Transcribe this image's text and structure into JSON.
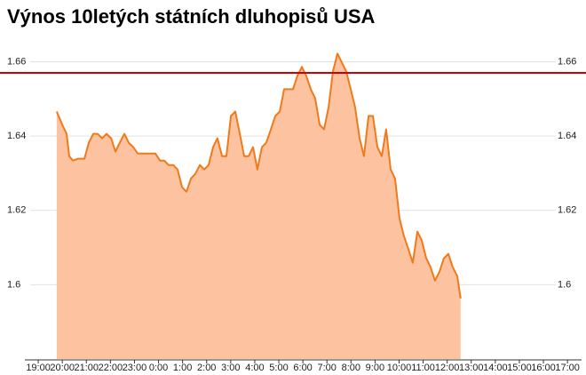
{
  "chart_data": {
    "type": "area",
    "title": "Výnos 10letých státních dluhopisů USA",
    "x": [
      0.77,
      1.0,
      1.18,
      1.29,
      1.44,
      1.66,
      1.92,
      2.1,
      2.29,
      2.47,
      2.66,
      2.84,
      3.03,
      3.21,
      3.39,
      3.58,
      3.76,
      3.95,
      4.13,
      4.32,
      4.5,
      4.69,
      4.87,
      5.06,
      5.24,
      5.42,
      5.61,
      5.79,
      5.98,
      6.16,
      6.35,
      6.53,
      6.72,
      6.9,
      7.08,
      7.27,
      7.45,
      7.64,
      7.82,
      8.01,
      8.19,
      8.38,
      8.56,
      8.75,
      8.93,
      9.11,
      9.3,
      9.48,
      9.67,
      9.85,
      10.04,
      10.22,
      10.41,
      10.59,
      10.77,
      10.96,
      11.14,
      11.33,
      11.51,
      11.7,
      11.88,
      12.07,
      12.25,
      12.44,
      12.62,
      12.8,
      12.99,
      13.17,
      13.36,
      13.54,
      13.73,
      13.91,
      14.1,
      14.28,
      14.46,
      14.65,
      14.83,
      15.02,
      15.2,
      15.39,
      15.57,
      15.76,
      15.94,
      16.13,
      16.31,
      16.49,
      16.68,
      16.86,
      17.05,
      17.23,
      17.42,
      17.56
    ],
    "series": [
      {
        "color": "#f07a1a",
        "fill": "#fdc3a0",
        "values": [
          1.6466,
          1.643,
          1.6406,
          1.6346,
          1.6334,
          1.6339,
          1.6339,
          1.6382,
          1.6406,
          1.6406,
          1.6394,
          1.6406,
          1.6394,
          1.6358,
          1.6382,
          1.6406,
          1.6382,
          1.637,
          1.6353,
          1.6353,
          1.6353,
          1.6353,
          1.6353,
          1.6334,
          1.6334,
          1.6322,
          1.6322,
          1.631,
          1.6262,
          1.625,
          1.6286,
          1.6298,
          1.6322,
          1.631,
          1.6322,
          1.637,
          1.6394,
          1.6346,
          1.6346,
          1.6454,
          1.6466,
          1.6406,
          1.6346,
          1.6346,
          1.637,
          1.631,
          1.637,
          1.6382,
          1.6418,
          1.6454,
          1.6466,
          1.6526,
          1.6526,
          1.6526,
          1.6562,
          1.6586,
          1.6562,
          1.6526,
          1.6502,
          1.643,
          1.6418,
          1.6478,
          1.6574,
          1.6622,
          1.6598,
          1.6574,
          1.6526,
          1.6478,
          1.6394,
          1.6346,
          1.6454,
          1.6454,
          1.637,
          1.6346,
          1.6418,
          1.631,
          1.6286,
          1.6178,
          1.6131,
          1.6095,
          1.6059,
          1.6143,
          1.6119,
          1.6071,
          1.6047,
          1.6011,
          1.6035,
          1.6071,
          1.6083,
          1.6047,
          1.6023,
          1.5963
        ]
      }
    ],
    "hline": {
      "value": 1.657,
      "color": "#cc0000"
    },
    "xlim": [
      -1.59,
      22.77
    ],
    "xticks": [
      {
        "value": 0,
        "label": "19:00"
      },
      {
        "value": 1,
        "label": "20:00"
      },
      {
        "value": 2,
        "label": "21:00"
      },
      {
        "value": 3,
        "label": "22:00"
      },
      {
        "value": 4,
        "label": "23:00"
      },
      {
        "value": 5,
        "label": "0:00"
      },
      {
        "value": 6,
        "label": "1:00"
      },
      {
        "value": 7,
        "label": "2:00"
      },
      {
        "value": 8,
        "label": "3:00"
      },
      {
        "value": 9,
        "label": "4:00"
      },
      {
        "value": 10,
        "label": "5:00"
      },
      {
        "value": 11,
        "label": "6:00"
      },
      {
        "value": 12,
        "label": "7:00"
      },
      {
        "value": 13,
        "label": "8:00"
      },
      {
        "value": 14,
        "label": "9:00"
      },
      {
        "value": 15,
        "label": "10:00"
      },
      {
        "value": 16,
        "label": "11:00"
      },
      {
        "value": 17,
        "label": "12:00"
      },
      {
        "value": 18,
        "label": "13:00"
      },
      {
        "value": 19,
        "label": "14:00"
      },
      {
        "value": 20,
        "label": "15:00"
      },
      {
        "value": 21,
        "label": "16:00"
      },
      {
        "value": 22,
        "label": "17:00"
      }
    ],
    "ylim": [
      1.58,
      1.668
    ],
    "yticks": [
      1.6,
      1.62,
      1.64,
      1.66
    ],
    "grid": true
  }
}
